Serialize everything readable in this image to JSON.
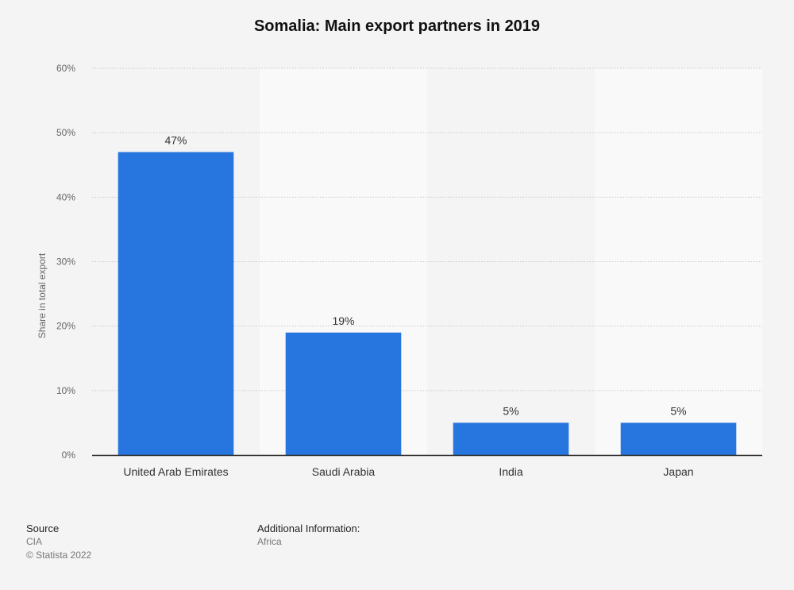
{
  "chart_data": {
    "type": "bar",
    "title": "Somalia: Main export partners in 2019",
    "xlabel": "",
    "ylabel": "Share in total export",
    "categories": [
      "United Arab Emirates",
      "Saudi Arabia",
      "India",
      "Japan"
    ],
    "values": [
      47,
      19,
      5,
      5
    ],
    "value_labels": [
      "47%",
      "19%",
      "5%",
      "5%"
    ],
    "ylim": [
      0,
      60
    ],
    "yticks": [
      0,
      10,
      20,
      30,
      40,
      50,
      60
    ],
    "ytick_labels": [
      "0%",
      "10%",
      "20%",
      "30%",
      "40%",
      "50%",
      "60%"
    ],
    "grid": true,
    "bar_color": "#2775df",
    "band_color": "#f9f9f9"
  },
  "footer": {
    "source_heading": "Source",
    "source_name": "CIA",
    "copyright": "© Statista 2022",
    "info_heading": "Additional Information:",
    "info_text": "Africa"
  }
}
